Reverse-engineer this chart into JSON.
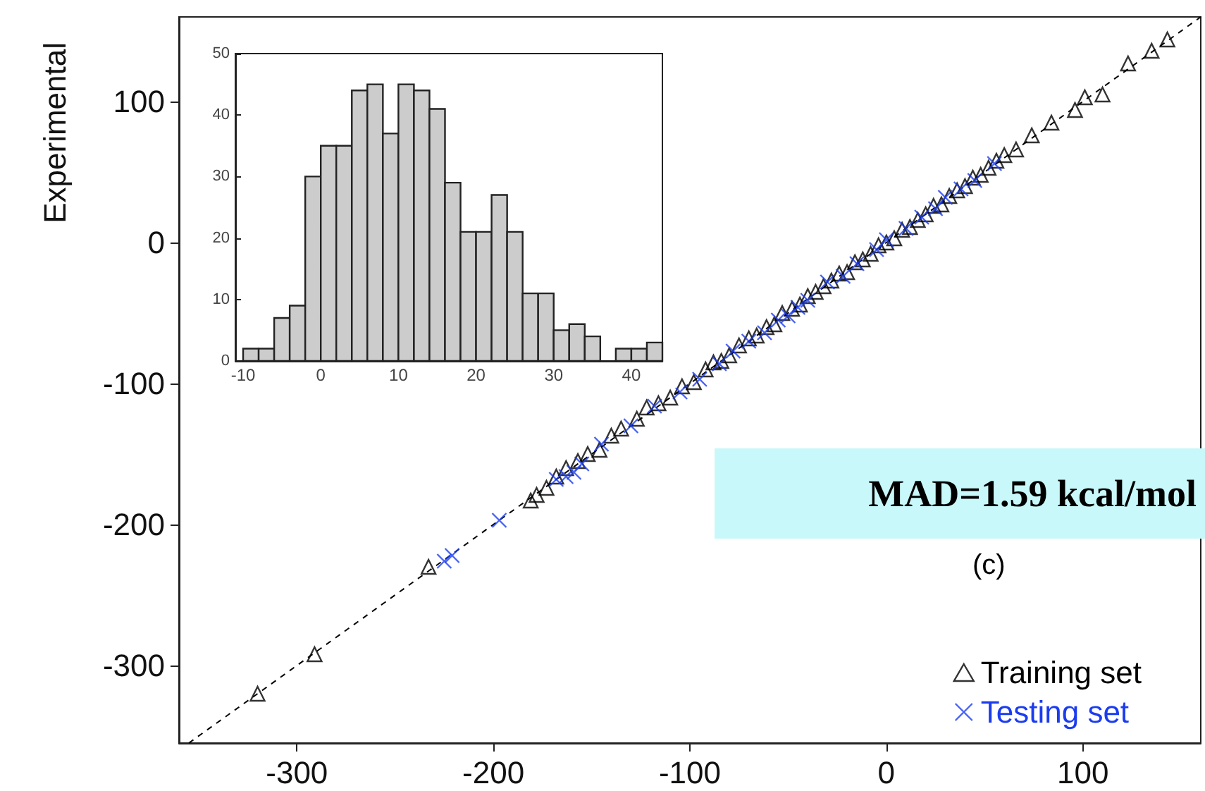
{
  "chart_data": [
    {
      "type": "scatter",
      "ylabel": "Experimental",
      "xlim": [
        -360,
        160
      ],
      "ylim": [
        -355,
        160
      ],
      "xticks": [
        -300,
        -200,
        -100,
        0,
        100
      ],
      "yticks": [
        -300,
        -200,
        -100,
        0,
        100
      ],
      "grid": false,
      "legend": "bottom right",
      "annotations": [
        "MAD=1.59 kcal/mol",
        "(c)"
      ],
      "series": [
        {
          "name": "Training set",
          "color": "#000000",
          "marker": "triangle",
          "x": [
            -320,
            -291,
            -233,
            -181,
            -178,
            -173,
            -168,
            -163,
            -157,
            -152,
            -146,
            -140,
            -135,
            -127,
            -122,
            -116,
            -110,
            -104,
            -98,
            -92,
            -88,
            -84,
            -80,
            -75,
            -70,
            -66,
            -61,
            -57,
            -53,
            -48,
            -44,
            -40,
            -36,
            -32,
            -28,
            -24,
            -20,
            -16,
            -12,
            -8,
            -4,
            0,
            4,
            8,
            12,
            16,
            20,
            24,
            28,
            32,
            36,
            40,
            44,
            48,
            52,
            56,
            60,
            66,
            74,
            84,
            96,
            101,
            110,
            123,
            135,
            143
          ],
          "values": [
            -320,
            -292,
            -230,
            -183,
            -179,
            -174,
            -166,
            -160,
            -155,
            -150,
            -147,
            -137,
            -132,
            -125,
            -117,
            -114,
            -110,
            -102,
            -99,
            -90,
            -85,
            -84,
            -80,
            -73,
            -68,
            -66,
            -60,
            -58,
            -50,
            -47,
            -44,
            -38,
            -35,
            -31,
            -27,
            -22,
            -21,
            -14,
            -12,
            -8,
            -2,
            0,
            3,
            9,
            11,
            16,
            20,
            26,
            27,
            33,
            37,
            40,
            46,
            48,
            53,
            58,
            62,
            66,
            76,
            85,
            94,
            103,
            105,
            127,
            136,
            144
          ]
        },
        {
          "name": "Testing set",
          "color": "#1a3cf0",
          "marker": "cross",
          "x": [
            -225,
            -221,
            -197,
            -168,
            -163,
            -159,
            -155,
            -145,
            -130,
            -118,
            -105,
            -95,
            -85,
            -78,
            -70,
            -62,
            -55,
            -50,
            -45,
            -40,
            -30,
            -22,
            -15,
            -5,
            0,
            10,
            18,
            25,
            30,
            38,
            45,
            55
          ],
          "values": [
            -226,
            -222,
            -197,
            -168,
            -166,
            -163,
            -157,
            -143,
            -130,
            -116,
            -106,
            -97,
            -86,
            -77,
            -70,
            -64,
            -55,
            -52,
            -46,
            -41,
            -28,
            -24,
            -15,
            -5,
            2,
            10,
            18,
            24,
            32,
            38,
            44,
            56
          ]
        },
        {
          "type": "line",
          "color": "#000000",
          "line_style": "dashed",
          "marker": "none",
          "x": [
            -355,
            160
          ],
          "values": [
            -355,
            160
          ]
        }
      ]
    },
    {
      "type": "histogram",
      "bins": [
        -10,
        -8,
        -6,
        -4,
        -2,
        0,
        2,
        4,
        6,
        8,
        10,
        12,
        14,
        16,
        18,
        20,
        22,
        24,
        26,
        28,
        30,
        32,
        34,
        36,
        38,
        40,
        42,
        44
      ],
      "values": [
        2,
        2,
        7,
        9,
        30,
        35,
        35,
        44,
        45,
        37,
        45,
        44,
        41,
        29,
        21,
        21,
        27,
        21,
        11,
        11,
        5,
        6,
        4,
        0,
        2,
        2,
        3
      ],
      "color": "#cccccc",
      "xlim": [
        -11,
        44
      ],
      "ylim": [
        0,
        50
      ],
      "xticks": [
        -10,
        0,
        10,
        20,
        30,
        40
      ],
      "yticks": [
        0,
        10,
        20,
        30,
        40,
        50
      ],
      "grid": false
    }
  ]
}
